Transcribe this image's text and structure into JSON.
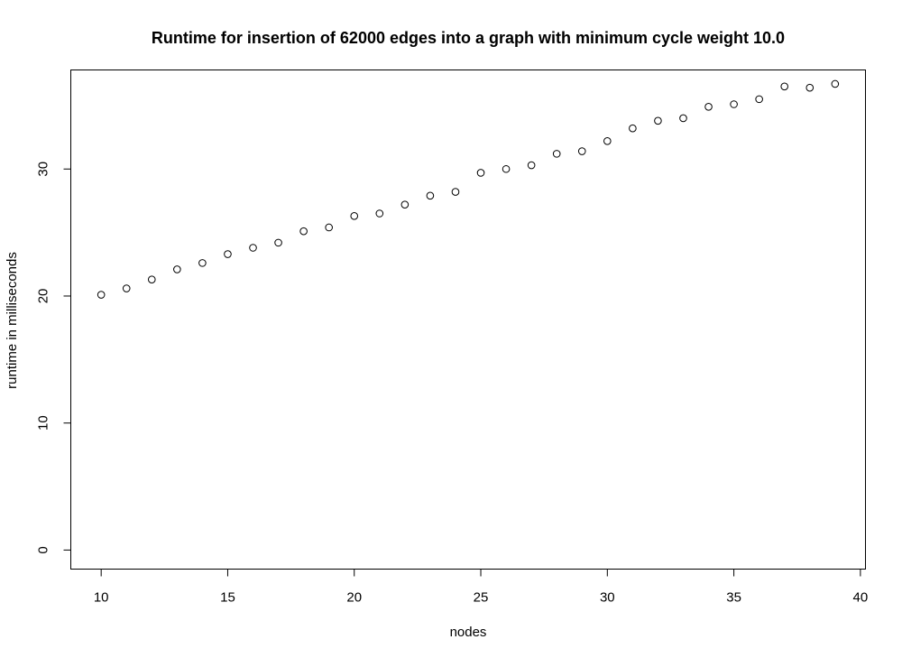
{
  "chart_data": {
    "type": "scatter",
    "title": "Runtime for insertion of 62000 edges into a graph with minimum cycle weight 10.0",
    "xlabel": "nodes",
    "ylabel": "runtime in milliseconds",
    "xlim": [
      8.8,
      40.2
    ],
    "ylim": [
      -1.5,
      37.8
    ],
    "xticks": [
      10,
      15,
      20,
      25,
      30,
      35,
      40
    ],
    "yticks": [
      0,
      10,
      20,
      30
    ],
    "x": [
      10,
      11,
      12,
      13,
      14,
      15,
      16,
      17,
      18,
      19,
      20,
      21,
      22,
      23,
      24,
      25,
      26,
      27,
      28,
      29,
      30,
      31,
      32,
      33,
      34,
      35,
      36,
      37,
      38,
      39
    ],
    "y": [
      20.1,
      20.6,
      21.3,
      22.1,
      22.6,
      23.3,
      23.8,
      24.2,
      25.1,
      25.4,
      26.3,
      26.5,
      27.2,
      27.9,
      28.2,
      29.7,
      30.0,
      30.3,
      31.2,
      31.4,
      32.2,
      33.2,
      33.8,
      34.0,
      34.9,
      35.1,
      35.5,
      36.5,
      36.4,
      36.7
    ],
    "marker": "open-circle",
    "grid": false,
    "legend": "none"
  }
}
